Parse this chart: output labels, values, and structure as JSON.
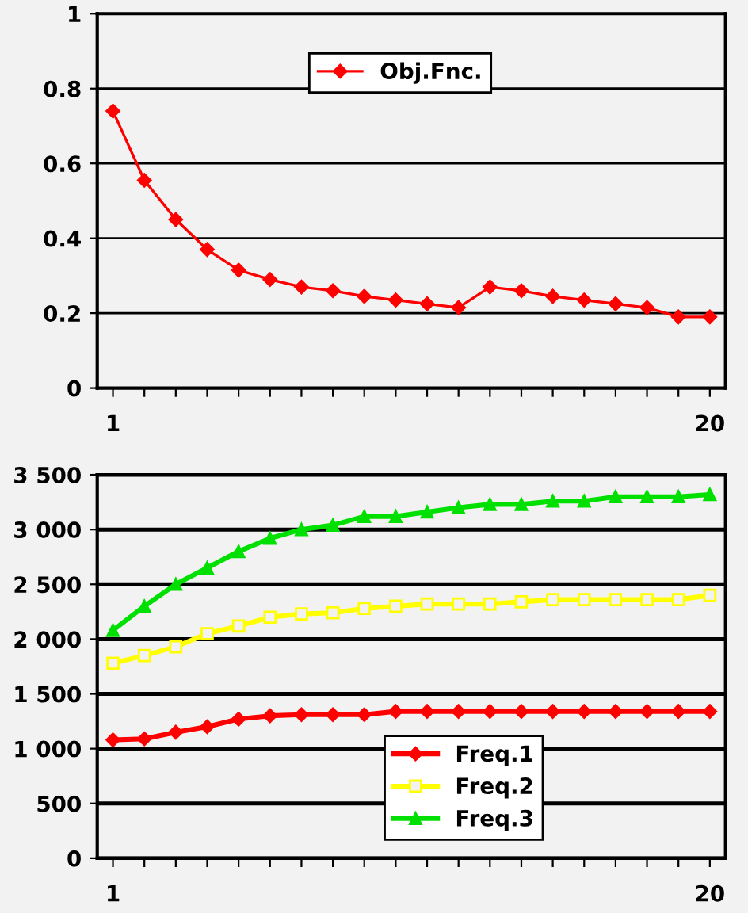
{
  "chart_data": [
    {
      "type": "line",
      "categories": [
        "1",
        null,
        null,
        null,
        null,
        null,
        null,
        null,
        null,
        null,
        null,
        null,
        null,
        null,
        null,
        null,
        null,
        null,
        null,
        "20"
      ],
      "series": [
        {
          "name": "Obj.Fnc.",
          "color": "#ff0000",
          "values": [
            0.74,
            0.555,
            0.45,
            0.37,
            0.315,
            0.29,
            0.27,
            0.26,
            0.245,
            0.235,
            0.225,
            0.215,
            0.27,
            0.26,
            0.245,
            0.235,
            0.225,
            0.215,
            0.19,
            0.19
          ]
        }
      ],
      "ylim": [
        0,
        1
      ],
      "yticks": [
        0,
        {
          "value": 0.2,
          "label": "0.2"
        },
        {
          "value": 0.4,
          "label": "0.4"
        },
        {
          "value": 0.6,
          "label": "0.6"
        },
        {
          "value": 0.8,
          "label": "0.8"
        },
        1
      ],
      "grid": "y",
      "legend": "top",
      "marker": "diamond"
    },
    {
      "type": "line",
      "categories": [
        "1",
        null,
        null,
        null,
        null,
        null,
        null,
        null,
        null,
        null,
        null,
        null,
        null,
        null,
        null,
        null,
        null,
        null,
        null,
        "20"
      ],
      "series": [
        {
          "name": "Freq.1",
          "color": "#ff0000",
          "marker": "diamond",
          "values": [
            1080,
            1090,
            1150,
            1200,
            1270,
            1300,
            1310,
            1310,
            1310,
            1340,
            1340,
            1340,
            1340,
            1340,
            1340,
            1340,
            1340,
            1340,
            1340,
            1340
          ]
        },
        {
          "name": "Freq.2",
          "color": "#ffff00",
          "marker": "square",
          "values": [
            1780,
            1850,
            1930,
            2050,
            2120,
            2200,
            2230,
            2240,
            2280,
            2300,
            2320,
            2320,
            2320,
            2340,
            2360,
            2360,
            2360,
            2360,
            2360,
            2400
          ]
        },
        {
          "name": "Freq.3",
          "color": "#00e000",
          "marker": "triangle",
          "values": [
            2080,
            2300,
            2500,
            2650,
            2800,
            2920,
            3000,
            3040,
            3120,
            3120,
            3160,
            3200,
            3230,
            3230,
            3260,
            3260,
            3300,
            3300,
            3300,
            3320
          ]
        }
      ],
      "ylim": [
        0,
        3500
      ],
      "yticks": [
        0,
        500,
        {
          "value": 1000,
          "label": "1 000"
        },
        {
          "value": 1500,
          "label": "1 500"
        },
        {
          "value": 2000,
          "label": "2 000"
        },
        {
          "value": 2500,
          "label": "2 500"
        },
        {
          "value": 3000,
          "label": "3 000"
        },
        {
          "value": 3500,
          "label": "3 500"
        }
      ],
      "grid": "y",
      "legend": "bottom"
    }
  ]
}
